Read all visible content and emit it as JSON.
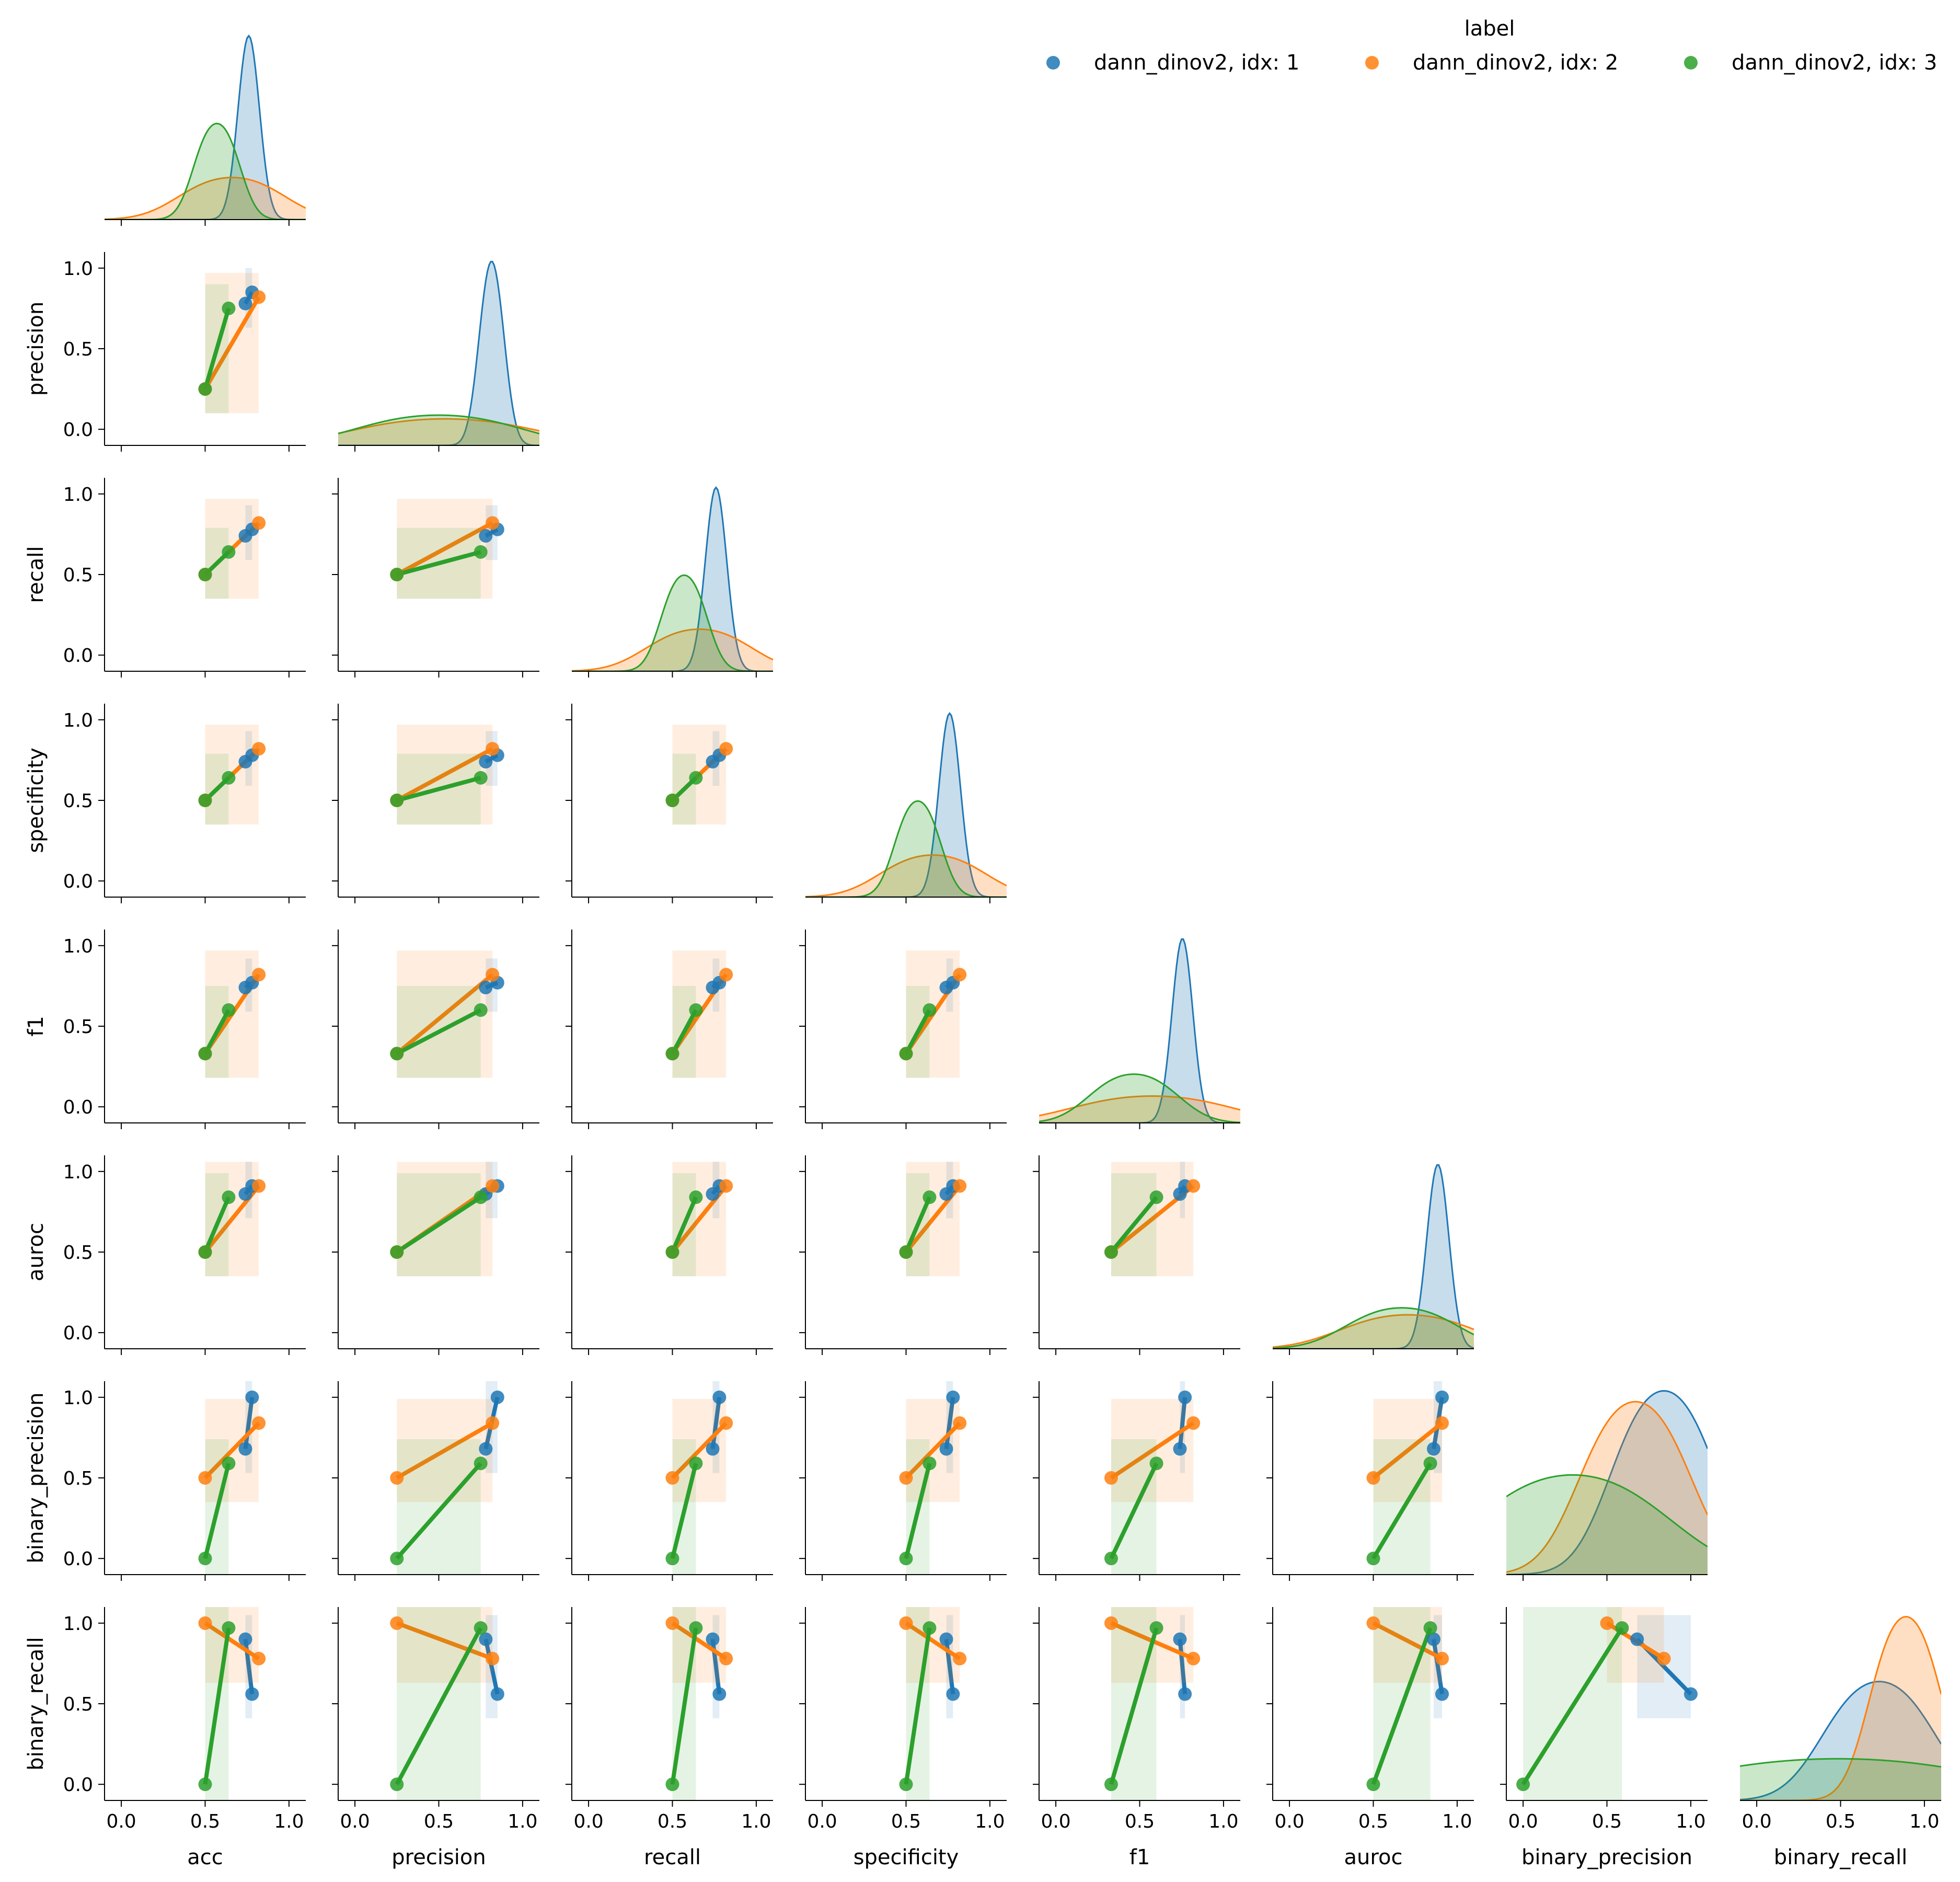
{
  "chart_data": {
    "type": "scatter",
    "title": "",
    "variables": [
      "acc",
      "precision",
      "recall",
      "specificity",
      "f1",
      "auroc",
      "binary_precision",
      "binary_recall"
    ],
    "ticks": [
      0.0,
      0.5,
      1.0
    ],
    "tick_labels": [
      "0.0",
      "0.5",
      "1.0"
    ],
    "xlim": [
      -0.1,
      1.1
    ],
    "ylim": [
      -0.1,
      1.1
    ],
    "grid": false,
    "corner": true,
    "diagonal": "kde",
    "off_diagonal": "scatter with linear regression fit and confidence band",
    "legend": {
      "title": "label",
      "placement": "top-right",
      "entries": [
        "dann_dinov2, idx: 1",
        "dann_dinov2, idx: 2",
        "dann_dinov2, idx: 3"
      ]
    },
    "series": [
      {
        "name": "dann_dinov2, idx: 1",
        "color": "#1f77b4",
        "points": [
          {
            "acc": 0.74,
            "precision": 0.78,
            "recall": 0.74,
            "specificity": 0.74,
            "f1": 0.74,
            "auroc": 0.86,
            "binary_precision": 0.68,
            "binary_recall": 0.9
          },
          {
            "acc": 0.78,
            "precision": 0.85,
            "recall": 0.78,
            "specificity": 0.78,
            "f1": 0.77,
            "auroc": 0.91,
            "binary_precision": 1.0,
            "binary_recall": 0.56
          }
        ]
      },
      {
        "name": "dann_dinov2, idx: 2",
        "color": "#ff7f0e",
        "points": [
          {
            "acc": 0.5,
            "precision": 0.25,
            "recall": 0.5,
            "specificity": 0.5,
            "f1": 0.33,
            "auroc": 0.5,
            "binary_precision": 0.5,
            "binary_recall": 1.0
          },
          {
            "acc": 0.82,
            "precision": 0.82,
            "recall": 0.82,
            "specificity": 0.82,
            "f1": 0.82,
            "auroc": 0.91,
            "binary_precision": 0.84,
            "binary_recall": 0.78
          }
        ]
      },
      {
        "name": "dann_dinov2, idx: 3",
        "color": "#2ca02c",
        "points": [
          {
            "acc": 0.5,
            "precision": 0.25,
            "recall": 0.5,
            "specificity": 0.5,
            "f1": 0.33,
            "auroc": 0.5,
            "binary_precision": 0.0,
            "binary_recall": 0.0
          },
          {
            "acc": 0.64,
            "precision": 0.75,
            "recall": 0.64,
            "specificity": 0.64,
            "f1": 0.6,
            "auroc": 0.84,
            "binary_precision": 0.59,
            "binary_recall": 0.97
          }
        ]
      }
    ]
  }
}
